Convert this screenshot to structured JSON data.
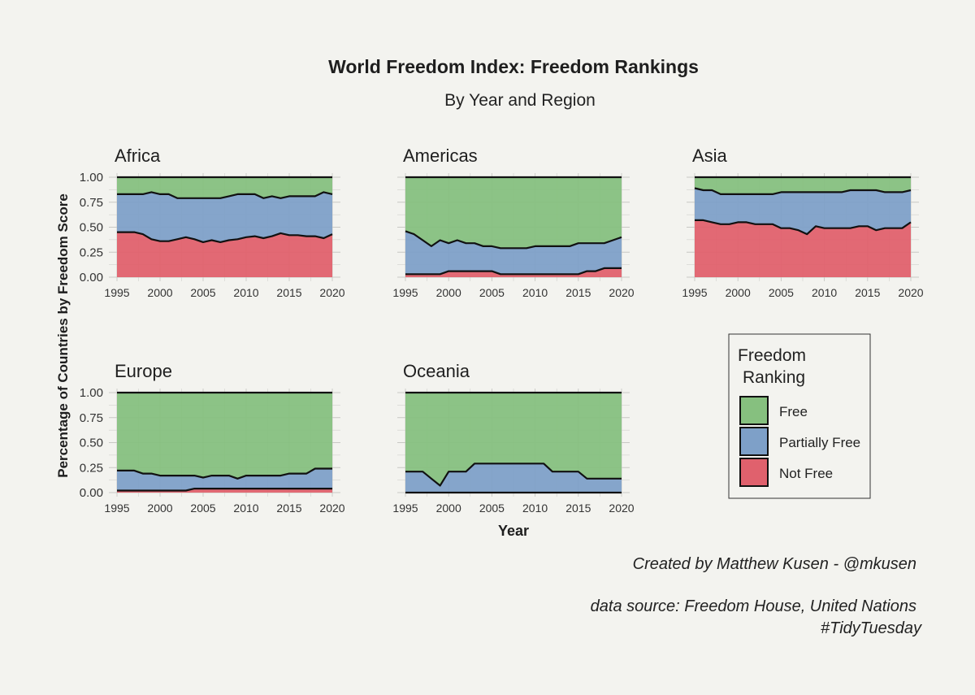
{
  "chart_data": {
    "type": "area",
    "title": "World Freedom Index: Freedom Rankings",
    "subtitle": "By Year and Region",
    "xlabel": "Year",
    "ylabel": "Percentage of Countries by Freedom Score",
    "x_ticks": [
      "1995",
      "2000",
      "2005",
      "2010",
      "2015",
      "2020"
    ],
    "y_ticks": [
      "0.00",
      "0.25",
      "0.50",
      "0.75",
      "1.00"
    ],
    "ylim": [
      0,
      1
    ],
    "xlim": [
      1995,
      2020
    ],
    "stacked": true,
    "legend": {
      "title_line1": "Freedom",
      "title_line2": "Ranking",
      "placement": "bottom-right",
      "items": [
        {
          "label": "Free",
          "color": "#86c07f"
        },
        {
          "label": "Partially Free",
          "color": "#7ea0c8"
        },
        {
          "label": "Not Free",
          "color": "#e0616d"
        }
      ]
    },
    "colors": {
      "free": "#86c07f",
      "partially_free": "#7ea0c8",
      "not_free": "#e0616d",
      "background": "#f3f3ef"
    },
    "years": [
      1995,
      1996,
      1997,
      1998,
      1999,
      2000,
      2001,
      2002,
      2003,
      2004,
      2005,
      2006,
      2007,
      2008,
      2009,
      2010,
      2011,
      2012,
      2013,
      2014,
      2015,
      2016,
      2017,
      2018,
      2019,
      2020
    ],
    "panels": [
      {
        "region": "Africa",
        "not_free": [
          0.45,
          0.45,
          0.45,
          0.43,
          0.38,
          0.36,
          0.36,
          0.38,
          0.4,
          0.38,
          0.35,
          0.37,
          0.35,
          0.37,
          0.38,
          0.4,
          0.41,
          0.39,
          0.41,
          0.44,
          0.42,
          0.42,
          0.41,
          0.41,
          0.39,
          0.43
        ],
        "not_or_partly": [
          0.83,
          0.83,
          0.83,
          0.83,
          0.85,
          0.83,
          0.83,
          0.79,
          0.79,
          0.79,
          0.79,
          0.79,
          0.79,
          0.81,
          0.83,
          0.83,
          0.83,
          0.79,
          0.81,
          0.79,
          0.81,
          0.81,
          0.81,
          0.81,
          0.85,
          0.83
        ]
      },
      {
        "region": "Americas",
        "not_free": [
          0.03,
          0.03,
          0.03,
          0.03,
          0.03,
          0.06,
          0.06,
          0.06,
          0.06,
          0.06,
          0.06,
          0.03,
          0.03,
          0.03,
          0.03,
          0.03,
          0.03,
          0.03,
          0.03,
          0.03,
          0.03,
          0.06,
          0.06,
          0.09,
          0.09,
          0.09
        ],
        "not_or_partly": [
          0.46,
          0.43,
          0.37,
          0.31,
          0.37,
          0.34,
          0.37,
          0.34,
          0.34,
          0.31,
          0.31,
          0.29,
          0.29,
          0.29,
          0.29,
          0.31,
          0.31,
          0.31,
          0.31,
          0.31,
          0.34,
          0.34,
          0.34,
          0.34,
          0.37,
          0.4
        ]
      },
      {
        "region": "Asia",
        "not_free": [
          0.57,
          0.57,
          0.55,
          0.53,
          0.53,
          0.55,
          0.55,
          0.53,
          0.53,
          0.53,
          0.49,
          0.49,
          0.47,
          0.43,
          0.51,
          0.49,
          0.49,
          0.49,
          0.49,
          0.51,
          0.51,
          0.47,
          0.49,
          0.49,
          0.49,
          0.55
        ],
        "not_or_partly": [
          0.89,
          0.87,
          0.87,
          0.83,
          0.83,
          0.83,
          0.83,
          0.83,
          0.83,
          0.83,
          0.85,
          0.85,
          0.85,
          0.85,
          0.85,
          0.85,
          0.85,
          0.85,
          0.87,
          0.87,
          0.87,
          0.87,
          0.85,
          0.85,
          0.85,
          0.87
        ]
      },
      {
        "region": "Europe",
        "not_free": [
          0.02,
          0.02,
          0.02,
          0.02,
          0.02,
          0.02,
          0.02,
          0.02,
          0.02,
          0.04,
          0.04,
          0.04,
          0.04,
          0.04,
          0.04,
          0.04,
          0.04,
          0.04,
          0.04,
          0.04,
          0.04,
          0.04,
          0.04,
          0.04,
          0.04,
          0.04
        ],
        "not_or_partly": [
          0.22,
          0.22,
          0.22,
          0.19,
          0.19,
          0.17,
          0.17,
          0.17,
          0.17,
          0.17,
          0.15,
          0.17,
          0.17,
          0.17,
          0.14,
          0.17,
          0.17,
          0.17,
          0.17,
          0.17,
          0.19,
          0.19,
          0.19,
          0.24,
          0.24,
          0.24
        ]
      },
      {
        "region": "Oceania",
        "not_free": [
          0.0,
          0.0,
          0.0,
          0.0,
          0.0,
          0.0,
          0.0,
          0.0,
          0.0,
          0.0,
          0.0,
          0.0,
          0.0,
          0.0,
          0.0,
          0.0,
          0.0,
          0.0,
          0.0,
          0.0,
          0.0,
          0.0,
          0.0,
          0.0,
          0.0,
          0.0
        ],
        "not_or_partly": [
          0.21,
          0.21,
          0.21,
          0.14,
          0.07,
          0.21,
          0.21,
          0.21,
          0.29,
          0.29,
          0.29,
          0.29,
          0.29,
          0.29,
          0.29,
          0.29,
          0.29,
          0.21,
          0.21,
          0.21,
          0.21,
          0.14,
          0.14,
          0.14,
          0.14,
          0.14
        ]
      }
    ]
  },
  "caption": {
    "line1": "Created by Matthew Kusen - @mkusen",
    "line2": "data source: Freedom House, United Nations",
    "line3": "#TidyTuesday"
  }
}
